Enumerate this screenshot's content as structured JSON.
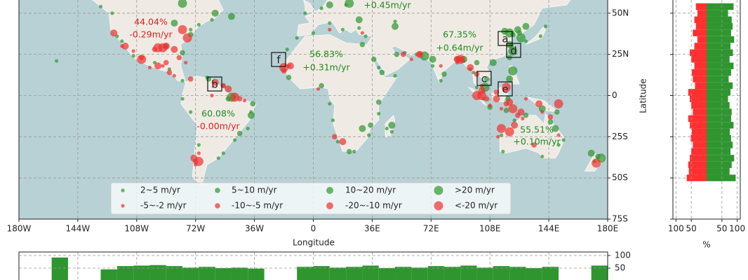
{
  "map": {
    "xlabel": "Longitude",
    "ylabel": "Latitude",
    "xlim": [
      -180,
      180
    ],
    "ylim": [
      -75,
      58
    ],
    "xticks": [
      {
        "value": -180,
        "label": "180W"
      },
      {
        "value": -144,
        "label": "144W"
      },
      {
        "value": -108,
        "label": "108W"
      },
      {
        "value": -72,
        "label": "72W"
      },
      {
        "value": -36,
        "label": "36W"
      },
      0,
      {
        "value": 36,
        "label": "36E"
      },
      {
        "value": 72,
        "label": "72E"
      },
      {
        "value": 108,
        "label": "108E"
      },
      {
        "value": 144,
        "label": "144E"
      },
      {
        "value": 180,
        "label": "180E"
      }
    ],
    "yticks": [
      {
        "value": 50,
        "label": "50N"
      },
      {
        "value": 25,
        "label": "25N"
      },
      0,
      {
        "value": -25,
        "label": "25S"
      },
      {
        "value": -50,
        "label": "50S"
      },
      {
        "value": -75,
        "label": "75S"
      }
    ],
    "grid": true,
    "annotations": [
      {
        "text": "44.04%",
        "color": "#e02020"
      },
      {
        "text": "-0.29m/yr",
        "color": "#e02020"
      },
      {
        "text": "+0.45m/yr",
        "color": "#1f8a1f"
      },
      {
        "text": "67.35%",
        "color": "#1f8a1f"
      },
      {
        "text": "+0.64m/yr",
        "color": "#1f8a1f"
      },
      {
        "text": "56.83%",
        "color": "#1f8a1f"
      },
      {
        "text": "+0.31m/yr",
        "color": "#1f8a1f"
      },
      {
        "text": "60.08%",
        "color": "#1f8a1f"
      },
      {
        "text": "-0.00m/yr",
        "color": "#e02020"
      },
      {
        "text": "55.51%",
        "color": "#1f8a1f"
      },
      {
        "text": "+0.10m/yr",
        "color": "#1f8a1f"
      }
    ],
    "boxes": [
      "a",
      "b",
      "c",
      "d",
      "e",
      "f"
    ],
    "legend": [
      {
        "label": "2~5 m/yr",
        "color": "#2f962f",
        "lon": [
          -157,
          -120,
          -117,
          -110,
          -97,
          -88,
          -80,
          -65,
          -55,
          -48,
          -38,
          -40,
          -48,
          -55,
          -58,
          -70,
          -75,
          -80,
          -16,
          -10,
          0,
          10,
          18,
          28,
          32,
          10,
          12,
          15,
          25,
          34,
          40,
          45,
          48,
          50,
          40,
          56,
          63,
          73,
          78,
          92,
          98,
          100,
          104,
          116,
          115,
          123,
          140,
          150,
          153,
          130,
          139,
          142,
          172,
          -5,
          5,
          20,
          50,
          -123,
          -130,
          -75,
          -70,
          -62
        ],
        "lat": [
          21,
          36,
          33,
          24,
          20,
          16,
          9,
          11,
          6,
          -1,
          -10,
          -20,
          -27,
          -35,
          -38,
          -30,
          -10,
          -2,
          28,
          35,
          38,
          44,
          40,
          41,
          36,
          -5,
          -15,
          -28,
          -34,
          -24,
          -11,
          -20,
          -22,
          12,
          17,
          26,
          25,
          18,
          9,
          21,
          14,
          5,
          -2,
          -34,
          -24,
          -15,
          -37,
          -30,
          -27,
          33,
          36,
          42,
          -40,
          50,
          53,
          55,
          45,
          50,
          54,
          40,
          43,
          46
        ]
      },
      {
        "label": "5~10 m/yr",
        "color": "#2f962f",
        "lon": [
          -80,
          -75,
          -90,
          -64,
          -52,
          -37,
          -45,
          30,
          37,
          42,
          51,
          35,
          40,
          80,
          88,
          100,
          106,
          120,
          121,
          122,
          126,
          108,
          118,
          130,
          145,
          174,
          -15,
          5,
          22,
          119,
          149
        ],
        "lat": [
          26,
          37,
          30,
          10,
          -2,
          -5,
          -23,
          31,
          22,
          14,
          25,
          -18,
          -4,
          13,
          22,
          20,
          10,
          23,
          30,
          37,
          38,
          -7,
          -9,
          -12,
          -16,
          -37,
          11,
          6,
          -34,
          -2,
          -10
        ]
      },
      {
        "label": "10~20 m/yr",
        "color": "#2f962f",
        "lon": [
          -85,
          -60,
          -50,
          10,
          28,
          50,
          73,
          92,
          110,
          120,
          125,
          117,
          130,
          120,
          140,
          148,
          -38,
          30,
          48,
          170
        ],
        "lat": [
          44,
          50,
          48,
          55,
          46,
          42,
          22,
          22,
          20,
          31,
          40,
          39,
          42,
          10,
          -8,
          -20,
          -12,
          -20,
          -18,
          -35
        ]
      },
      {
        "label": ">20 m/yr",
        "color": "#2f962f",
        "lon": [
          -80,
          22,
          120,
          122,
          105,
          122,
          127,
          68,
          -50,
          176
        ],
        "lat": [
          56,
          56,
          38,
          27,
          5,
          15,
          35,
          24,
          -1,
          -38
        ]
      },
      {
        "label": "-5~-2 m/yr",
        "color": "#ee3030",
        "lon": [
          -117,
          -110,
          -100,
          -92,
          -85,
          -78,
          -62,
          -42,
          -70,
          -72,
          -15,
          3,
          10,
          30,
          60,
          78,
          88,
          96,
          103,
          108,
          115,
          113,
          128,
          140,
          150,
          130
        ],
        "lat": [
          30,
          27,
          17,
          18,
          12,
          20,
          0,
          -3,
          -35,
          -42,
          18,
          4,
          40,
          38,
          22,
          18,
          20,
          16,
          6,
          -6,
          -8,
          -25,
          -14,
          -10,
          -24,
          -2
        ]
      },
      {
        "label": "-10~-5 m/yr",
        "color": "#ee3030",
        "lon": [
          -105,
          -97,
          -90,
          -82,
          -75,
          -55,
          -45,
          -18,
          55,
          65,
          90,
          100,
          106,
          112,
          118,
          125,
          135,
          145,
          -72,
          13,
          -88
        ],
        "lat": [
          23,
          28,
          20,
          23,
          10,
          6,
          -2,
          15,
          25,
          25,
          22,
          13,
          -2,
          2,
          -5,
          -12,
          -30,
          -13,
          -40,
          -25,
          14
        ]
      },
      {
        "label": "-20~-10 m/yr",
        "color": "#ee3030",
        "lon": [
          -122,
          -115,
          -95,
          -90,
          -85,
          -60,
          -52,
          -73,
          -14,
          65,
          88,
          96,
          103,
          112,
          120,
          127,
          123,
          138,
          18
        ],
        "lat": [
          38,
          30,
          18,
          30,
          28,
          8,
          4,
          -38,
          18,
          25,
          22,
          17,
          3,
          -2,
          -4,
          -10,
          -18,
          -5,
          -28
        ]
      },
      {
        "label": "<-20 m/yr",
        "color": "#ee3030",
        "lon": [
          -92,
          -80,
          -77,
          -95,
          -105,
          -70,
          -18,
          90,
          100,
          103,
          118,
          122,
          120,
          115,
          173,
          -48,
          150
        ],
        "lat": [
          29,
          40,
          35,
          29,
          22,
          -40,
          17,
          22,
          0,
          0,
          5,
          -8,
          -22,
          -20,
          -41,
          -1,
          -5
        ]
      }
    ]
  },
  "lat_hist": {
    "bins": [
      56,
      52,
      48,
      44,
      40,
      36,
      32,
      28,
      24,
      20,
      16,
      12,
      8,
      4,
      0,
      -4,
      -8,
      -12,
      -16,
      -20,
      -24,
      -28,
      -32,
      -36,
      -40,
      -44,
      -48,
      -52
    ],
    "series": [
      {
        "color": "#2f962f",
        "values": [
          88,
          70,
          82,
          85,
          80,
          90,
          78,
          86,
          75,
          88,
          80,
          72,
          85,
          78,
          70,
          75,
          82,
          80,
          88,
          76,
          80,
          85,
          78,
          90,
          82,
          75,
          95
        ]
      },
      {
        "color": "#ff3030",
        "axis": "x2",
        "values": [
          35,
          30,
          40,
          35,
          45,
          30,
          40,
          55,
          50,
          40,
          48,
          45,
          38,
          60,
          55,
          50,
          45,
          60,
          55,
          48,
          52,
          45,
          50,
          55,
          60,
          58,
          65
        ]
      }
    ],
    "xlim": [
      0,
      110
    ],
    "xticks": [
      50,
      100
    ],
    "x2lim": [
      110,
      0
    ],
    "x2ticks": [
      100,
      50
    ],
    "xlabel": "%"
  },
  "lon_hist": {
    "bins": [
      -180,
      -170,
      -160,
      -150,
      -140,
      -130,
      -120,
      -110,
      -100,
      -90,
      -80,
      -70,
      -60,
      -50,
      -40,
      -30,
      -20,
      -10,
      0,
      10,
      20,
      30,
      40,
      50,
      60,
      70,
      80,
      90,
      100,
      110,
      120,
      130,
      140,
      150,
      160,
      170,
      180
    ],
    "values": [
      0,
      0,
      92,
      0,
      0,
      45,
      58,
      60,
      62,
      58,
      52,
      55,
      50,
      52,
      48,
      0,
      0,
      55,
      58,
      52,
      55,
      60,
      50,
      55,
      52,
      58,
      55,
      60,
      52,
      58,
      55,
      50,
      55,
      0,
      0,
      60
    ],
    "color": "#2f962f",
    "ylim": [
      0,
      100
    ],
    "yticks": [
      100,
      50
    ]
  }
}
